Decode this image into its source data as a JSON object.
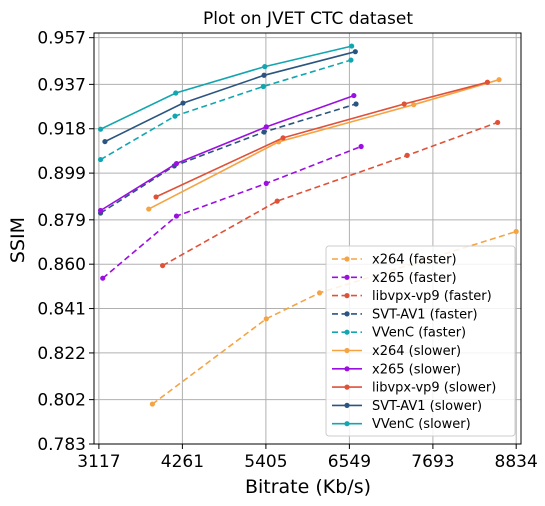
{
  "chart_data": {
    "type": "line",
    "title": "Plot on JVET CTC dataset",
    "xlabel": "Bitrate (Kb/s)",
    "ylabel": "SSIM",
    "xlim": [
      3050,
      8900
    ],
    "ylim": [
      0.783,
      0.959
    ],
    "xticks": [
      3117,
      4261,
      5405,
      6549,
      7693,
      8834
    ],
    "xtick_labels": [
      "3117",
      "4261",
      "5405",
      "6549",
      "7693",
      "8834"
    ],
    "yticks": [
      0.783,
      0.802,
      0.822,
      0.841,
      0.86,
      0.879,
      0.899,
      0.918,
      0.937,
      0.957
    ],
    "ytick_labels": [
      "0.783",
      "0.802",
      "0.822",
      "0.841",
      "0.860",
      "0.879",
      "0.899",
      "0.918",
      "0.937",
      "0.957"
    ],
    "grid": true,
    "legend_position": "lower-right",
    "series": [
      {
        "name": "x264 (faster)",
        "color": "#f4a443",
        "dash": true,
        "x": [
          3850,
          5410,
          6140,
          8834
        ],
        "y": [
          0.8001,
          0.8366,
          0.8477,
          0.874
        ]
      },
      {
        "name": "x265 (faster)",
        "color": "#9b0fe0",
        "dash": true,
        "x": [
          3170,
          4180,
          5410,
          6710
        ],
        "y": [
          0.854,
          0.8806,
          0.8946,
          0.9104
        ]
      },
      {
        "name": "libvpx-vp9 (faster)",
        "color": "#e05138",
        "dash": true,
        "x": [
          3990,
          5560,
          7340,
          8580
        ],
        "y": [
          0.8594,
          0.887,
          0.9066,
          0.9207
        ]
      },
      {
        "name": "SVT-AV1 (faster)",
        "color": "#2b5580",
        "dash": true,
        "x": [
          3140,
          4150,
          5380,
          6640
        ],
        "y": [
          0.8819,
          0.9021,
          0.9166,
          0.9286
        ]
      },
      {
        "name": "VVenC (faster)",
        "color": "#12a6b0",
        "dash": true,
        "x": [
          3140,
          4160,
          5370,
          6570
        ],
        "y": [
          0.9048,
          0.9234,
          0.9361,
          0.9474
        ]
      },
      {
        "name": "x264 (slower)",
        "color": "#f4a443",
        "dash": false,
        "x": [
          3800,
          5580,
          7430,
          8600
        ],
        "y": [
          0.8836,
          0.9124,
          0.9283,
          0.939
        ]
      },
      {
        "name": "x265 (slower)",
        "color": "#9b0fe0",
        "dash": false,
        "x": [
          3140,
          4180,
          5410,
          6610
        ],
        "y": [
          0.883,
          0.9031,
          0.9188,
          0.9322
        ]
      },
      {
        "name": "libvpx-vp9 (slower)",
        "color": "#e05138",
        "dash": false,
        "x": [
          3900,
          5640,
          7300,
          8440
        ],
        "y": [
          0.8888,
          0.9141,
          0.9286,
          0.9379
        ]
      },
      {
        "name": "SVT-AV1 (slower)",
        "color": "#2b5580",
        "dash": false,
        "x": [
          3200,
          4270,
          5380,
          6630
        ],
        "y": [
          0.9125,
          0.929,
          0.9409,
          0.951
        ]
      },
      {
        "name": "VVenC (slower)",
        "color": "#12a6b0",
        "dash": false,
        "x": [
          3140,
          4170,
          5390,
          6580
        ],
        "y": [
          0.9178,
          0.9333,
          0.9446,
          0.9534
        ]
      }
    ]
  }
}
